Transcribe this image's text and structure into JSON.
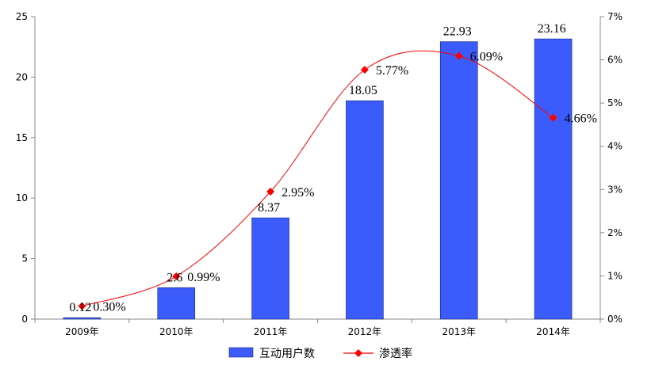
{
  "chart_data": {
    "type": "bar+line",
    "categories": [
      "2009年",
      "2010年",
      "2011年",
      "2012年",
      "2013年",
      "2014年"
    ],
    "series": [
      {
        "name": "互动用户数",
        "type": "bar",
        "axis": "left",
        "values": [
          0.12,
          2.6,
          8.37,
          18.05,
          22.93,
          23.16
        ],
        "labels": [
          "0.12",
          "2.6",
          "8.37",
          "18.05",
          "22.93",
          "23.16"
        ],
        "color": "#3b5bfa"
      },
      {
        "name": "渗透率",
        "type": "line",
        "axis": "right",
        "values": [
          0.3,
          0.99,
          2.95,
          5.77,
          6.09,
          4.66
        ],
        "labels": [
          "0.30%",
          "0.99%",
          "2.95%",
          "5.77%",
          "6.09%",
          "4.66%"
        ],
        "color": "#ff0000"
      }
    ],
    "y_left": {
      "range": [
        0,
        25
      ],
      "ticks": [
        "0",
        "5",
        "10",
        "15",
        "20",
        "25"
      ],
      "tick_values": [
        0,
        5,
        10,
        15,
        20,
        25
      ]
    },
    "y_right": {
      "range": [
        0,
        7
      ],
      "ticks": [
        "0%",
        "1%",
        "2%",
        "3%",
        "4%",
        "5%",
        "6%",
        "7%"
      ],
      "tick_values": [
        0,
        1,
        2,
        3,
        4,
        5,
        6,
        7
      ]
    },
    "grid": false,
    "legend": "bottom"
  }
}
